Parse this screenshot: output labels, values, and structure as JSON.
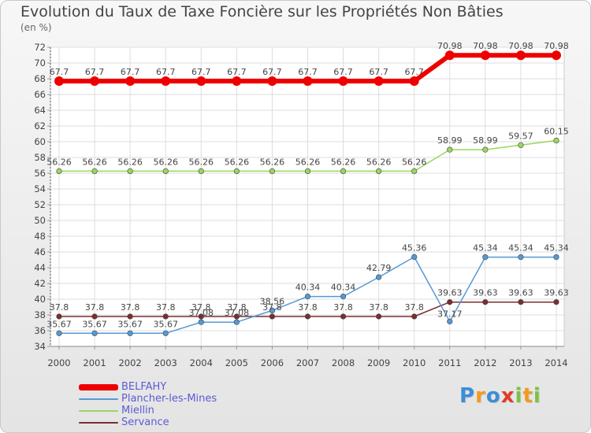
{
  "chart_data": {
    "type": "line",
    "title": "Evolution du Taux de Taxe Foncière sur les Propriétés Non Bâties",
    "ylabel": "(en %)",
    "x": [
      "2000",
      "2001",
      "2002",
      "2003",
      "2004",
      "2005",
      "2006",
      "2007",
      "2008",
      "2009",
      "2010",
      "2011",
      "2012",
      "2013",
      "2014"
    ],
    "ylim": [
      34,
      72
    ],
    "yticks": [
      "34",
      "36",
      "38",
      "40",
      "42",
      "44",
      "46",
      "48",
      "50",
      "52",
      "54",
      "56",
      "58",
      "60",
      "62",
      "64",
      "66",
      "68",
      "70",
      "72"
    ],
    "series": [
      {
        "name": "BELFAHY",
        "color": "#ee0000",
        "values": [
          67.7,
          67.7,
          67.7,
          67.7,
          67.7,
          67.7,
          67.7,
          67.7,
          67.7,
          67.7,
          67.7,
          70.98,
          70.98,
          70.98,
          70.98
        ],
        "labels": [
          "67.7",
          "67.7",
          "67.7",
          "67.7",
          "67.7",
          "67.7",
          "67.7",
          "67.7",
          "67.7",
          "67.7",
          "67.7",
          "70.98",
          "70.98",
          "70.98",
          "70.98"
        ]
      },
      {
        "name": "Plancher-les-Mines",
        "color": "#5599d6",
        "values": [
          35.67,
          35.67,
          35.67,
          35.67,
          37.08,
          37.08,
          38.56,
          40.34,
          40.34,
          42.79,
          45.36,
          37.17,
          45.34,
          45.34,
          45.34
        ],
        "labels": [
          "35.67",
          "35.67",
          "35.67",
          "35.67",
          "37.08",
          "37.08",
          "38.56",
          "40.34",
          "40.34",
          "42.79",
          "45.36",
          "37.17",
          "45.34",
          "45.34",
          "45.34"
        ]
      },
      {
        "name": "Miellin",
        "color": "#99d65e",
        "values": [
          56.26,
          56.26,
          56.26,
          56.26,
          56.26,
          56.26,
          56.26,
          56.26,
          56.26,
          56.26,
          56.26,
          58.99,
          58.99,
          59.57,
          60.15
        ],
        "labels": [
          "56.26",
          "56.26",
          "56.26",
          "56.26",
          "56.26",
          "56.26",
          "56.26",
          "56.26",
          "56.26",
          "56.26",
          "56.26",
          "58.99",
          "58.99",
          "59.57",
          "60.15"
        ]
      },
      {
        "name": "Servance",
        "color": "#7a2e2e",
        "values": [
          37.8,
          37.8,
          37.8,
          37.8,
          37.8,
          37.8,
          37.8,
          37.8,
          37.8,
          37.8,
          37.8,
          39.63,
          39.63,
          39.63,
          39.63
        ],
        "labels": [
          "37.8",
          "37.8",
          "37.8",
          "37.8",
          "37.8",
          "37.8",
          "37.8",
          "37.8",
          "37.8",
          "37.8",
          "37.8",
          "39.63",
          "39.63",
          "39.63",
          "39.63"
        ]
      }
    ],
    "grid": true,
    "legend": "bottom-left"
  },
  "logo": {
    "letters": [
      "P",
      "r",
      "o",
      "x",
      "i",
      "t",
      "i"
    ],
    "colors": [
      "#3b8fd6",
      "#f29a1f",
      "#3b8fd6",
      "#e23b2a",
      "#7cc242",
      "#f29a1f",
      "#7cc242"
    ]
  }
}
